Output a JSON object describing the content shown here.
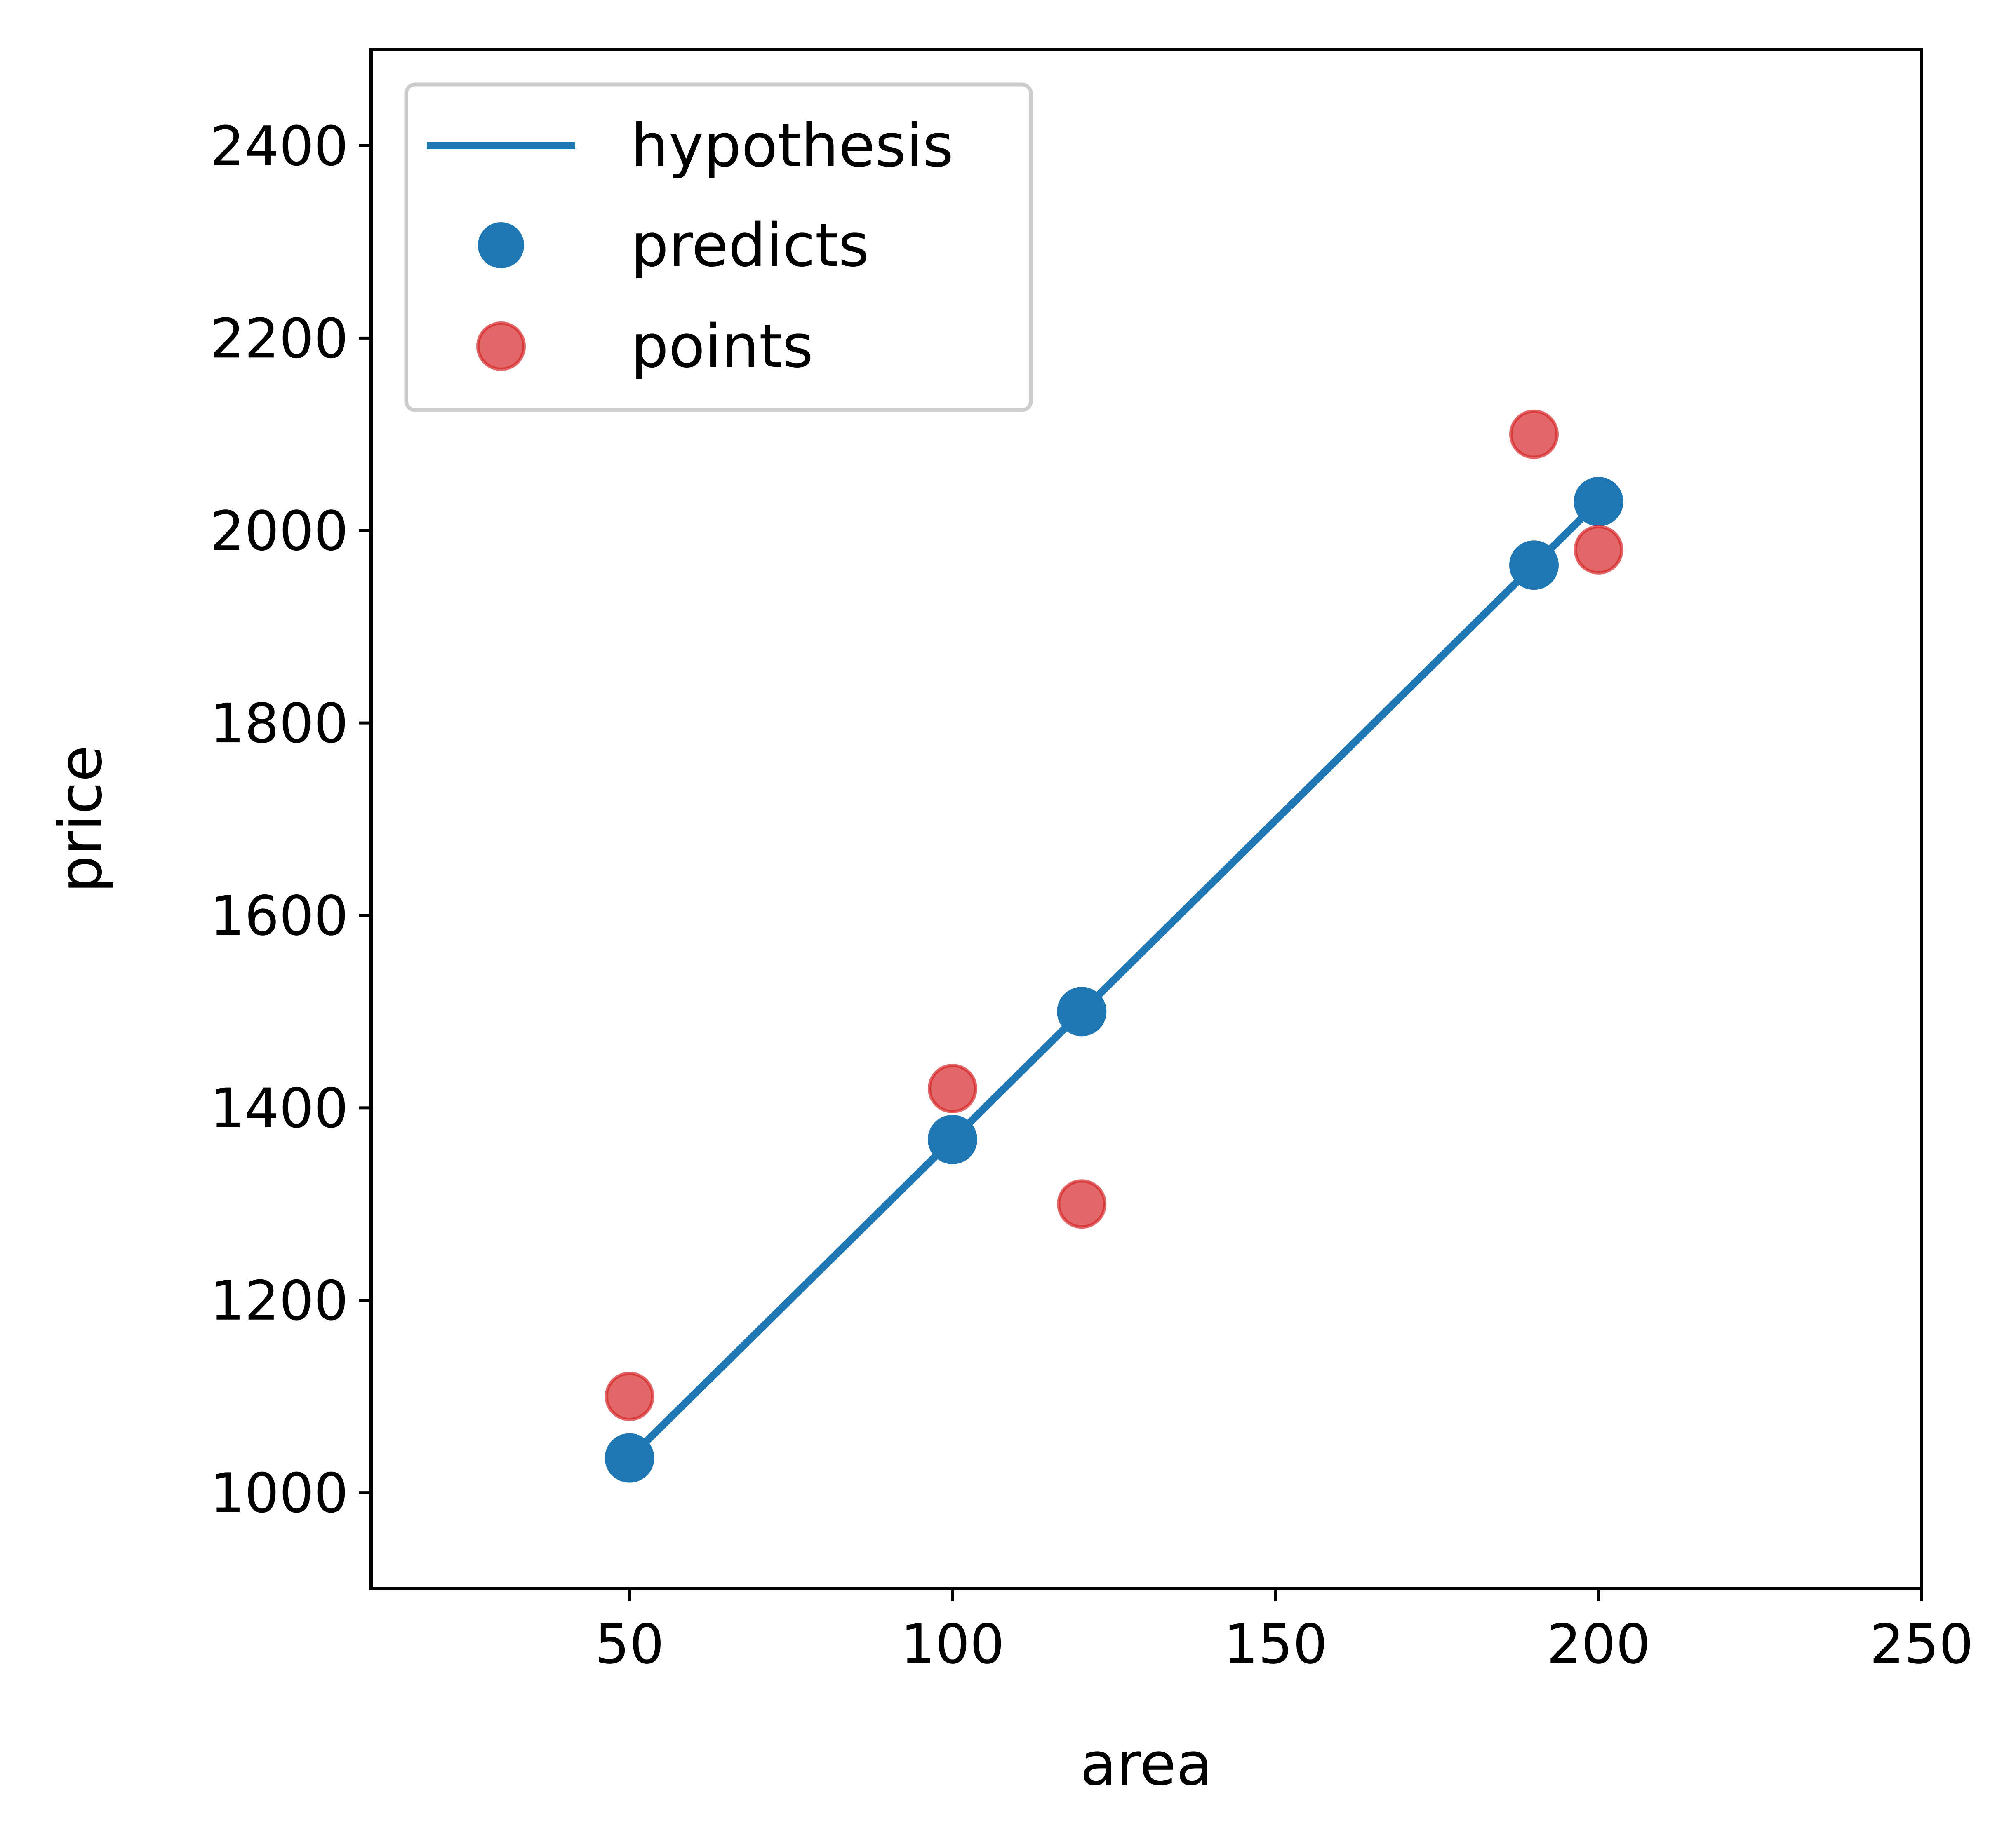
{
  "chart_data": {
    "type": "scatter",
    "title": "",
    "xlabel": "area",
    "ylabel": "price",
    "xlim": [
      10,
      250
    ],
    "ylim": [
      900,
      2500
    ],
    "xticks": [
      50,
      100,
      150,
      200,
      250
    ],
    "yticks": [
      1000,
      1200,
      1400,
      1600,
      1800,
      2000,
      2200,
      2400
    ],
    "grid": false,
    "legend_position": "upper-left",
    "series": [
      {
        "name": "hypothesis",
        "kind": "line",
        "color": "#1f77b4",
        "x": [
          50,
          100,
          120,
          190,
          200
        ],
        "y": [
          1036,
          1367,
          1500,
          1964,
          2030
        ]
      },
      {
        "name": "predicts",
        "kind": "scatter",
        "color": "#1f77b4",
        "x": [
          50,
          100,
          120,
          190,
          200
        ],
        "y": [
          1036,
          1367,
          1500,
          1964,
          2030
        ]
      },
      {
        "name": "points",
        "kind": "scatter",
        "color": "#d62728",
        "alpha": 0.7,
        "x": [
          50,
          100,
          120,
          190,
          200
        ],
        "y": [
          1100,
          1420,
          1300,
          2100,
          1980
        ]
      }
    ]
  }
}
